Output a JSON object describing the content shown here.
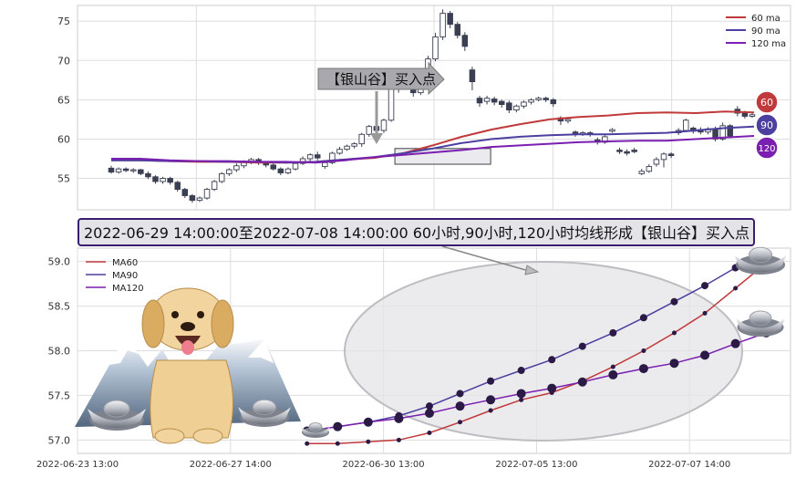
{
  "chart_data": [
    {
      "type": "candlestick",
      "ylim": [
        51,
        77
      ],
      "yticks": [
        55,
        60,
        65,
        70,
        75
      ],
      "grid": true,
      "legend_position": "top-right",
      "legend": [
        "60 ma",
        "90 ma",
        "120 ma"
      ],
      "annotation": "【银山谷】买入点",
      "end_badges": [
        "60",
        "90",
        "120"
      ],
      "colors": {
        "ma60": "#c0393b",
        "ma90": "#4b3f9f",
        "ma120": "#7a1fb0"
      },
      "candles": [
        [
          56.3,
          55.8,
          56.6,
          55.6
        ],
        [
          55.8,
          56.2,
          56.4,
          55.6
        ],
        [
          56.2,
          56.0,
          56.4,
          55.8
        ],
        [
          56.0,
          56.1,
          56.3,
          55.7
        ],
        [
          56.1,
          55.6,
          56.2,
          55.4
        ],
        [
          55.6,
          55.2,
          55.9,
          54.9
        ],
        [
          55.2,
          54.6,
          55.4,
          54.3
        ],
        [
          54.6,
          55.0,
          55.2,
          54.3
        ],
        [
          55.0,
          54.5,
          55.2,
          54.2
        ],
        [
          54.5,
          53.6,
          54.7,
          53.3
        ],
        [
          53.6,
          52.8,
          53.8,
          52.5
        ],
        [
          52.8,
          52.2,
          53.0,
          51.9
        ],
        [
          52.2,
          52.5,
          52.7,
          52.0
        ],
        [
          52.5,
          53.6,
          53.8,
          52.3
        ],
        [
          53.6,
          54.6,
          54.8,
          53.4
        ],
        [
          54.6,
          55.6,
          55.8,
          54.4
        ],
        [
          55.6,
          56.1,
          56.3,
          55.3
        ],
        [
          56.1,
          56.6,
          56.9,
          55.8
        ],
        [
          56.6,
          57.1,
          57.3,
          56.3
        ],
        [
          57.1,
          57.4,
          57.6,
          56.8
        ],
        [
          57.4,
          57.0,
          57.6,
          56.7
        ],
        [
          57.0,
          56.7,
          57.2,
          56.4
        ],
        [
          56.7,
          56.2,
          56.9,
          56.0
        ],
        [
          56.2,
          55.7,
          56.4,
          55.4
        ],
        [
          55.7,
          56.2,
          56.4,
          55.5
        ],
        [
          56.2,
          56.9,
          57.1,
          56.0
        ],
        [
          56.9,
          57.5,
          57.8,
          56.7
        ],
        [
          57.5,
          58.0,
          58.2,
          57.2
        ],
        [
          58.0,
          57.6,
          58.4,
          57.3
        ],
        [
          56.5,
          57.0,
          57.2,
          56.2
        ],
        [
          57.0,
          58.2,
          58.4,
          56.8
        ],
        [
          58.2,
          58.7,
          59.0,
          58.0
        ],
        [
          58.7,
          59.1,
          59.3,
          58.5
        ],
        [
          59.1,
          59.4,
          59.6,
          58.8
        ],
        [
          59.4,
          60.6,
          60.8,
          59.0
        ],
        [
          60.6,
          61.6,
          61.8,
          60.3
        ],
        [
          61.6,
          61.1,
          62.3,
          60.8
        ],
        [
          61.1,
          62.4,
          62.6,
          60.8
        ],
        [
          62.4,
          66.5,
          67.2,
          62.2
        ],
        [
          66.5,
          67.5,
          67.9,
          65.9
        ],
        [
          67.5,
          66.8,
          68.2,
          66.3
        ],
        [
          66.8,
          65.9,
          67.3,
          65.4
        ],
        [
          65.9,
          67.2,
          67.6,
          65.6
        ],
        [
          67.2,
          70.2,
          70.6,
          66.9
        ],
        [
          70.2,
          73.0,
          73.5,
          69.9
        ],
        [
          73.0,
          76.0,
          76.5,
          72.6
        ],
        [
          76.0,
          74.6,
          76.3,
          74.1
        ],
        [
          74.6,
          73.2,
          74.9,
          72.8
        ],
        [
          73.2,
          71.8,
          73.6,
          71.2
        ],
        [
          68.8,
          67.3,
          69.2,
          66.2
        ],
        [
          65.2,
          64.6,
          65.5,
          64.1
        ],
        [
          64.8,
          65.2,
          65.5,
          64.4
        ],
        [
          65.1,
          64.7,
          65.4,
          64.3
        ],
        [
          64.8,
          64.4,
          65.0,
          64.0
        ],
        [
          64.6,
          63.7,
          64.9,
          63.3
        ],
        [
          63.7,
          64.2,
          64.4,
          63.4
        ],
        [
          64.2,
          64.7,
          64.9,
          63.9
        ],
        [
          64.7,
          65.0,
          65.2,
          64.4
        ],
        [
          65.0,
          65.2,
          65.4,
          64.8
        ],
        [
          65.2,
          65.0,
          65.4,
          64.7
        ],
        [
          65.0,
          64.5,
          65.2,
          64.1
        ],
        [
          62.7,
          62.3,
          62.9,
          61.8
        ],
        [
          62.3,
          62.5,
          62.7,
          62.0
        ],
        [
          60.9,
          60.6,
          61.1,
          60.3
        ],
        [
          60.6,
          60.8,
          61.0,
          60.4
        ],
        [
          60.8,
          60.6,
          61.0,
          60.3
        ],
        [
          59.9,
          59.6,
          60.2,
          59.3
        ],
        [
          59.6,
          60.3,
          60.5,
          59.4
        ],
        [
          61.0,
          61.2,
          61.4,
          60.8
        ],
        [
          58.6,
          58.4,
          58.9,
          58.1
        ],
        [
          58.4,
          58.2,
          58.7,
          57.9
        ],
        [
          58.6,
          58.4,
          58.9,
          58.2
        ],
        [
          55.6,
          55.9,
          56.2,
          55.4
        ],
        [
          55.9,
          56.5,
          56.8,
          55.7
        ],
        [
          56.8,
          57.4,
          57.7,
          56.5
        ],
        [
          57.4,
          58.1,
          58.3,
          56.4
        ],
        [
          58.1,
          57.9,
          58.3,
          57.6
        ],
        [
          60.8,
          61.1,
          61.4,
          60.5
        ],
        [
          61.1,
          62.4,
          62.6,
          60.9
        ],
        [
          61.4,
          61.0,
          61.6,
          60.7
        ],
        [
          61.2,
          60.9,
          61.5,
          60.6
        ],
        [
          60.9,
          61.3,
          61.5,
          60.6
        ],
        [
          61.3,
          60.0,
          61.6,
          59.7
        ],
        [
          60.0,
          61.7,
          62.1,
          59.8
        ],
        [
          61.7,
          60.4,
          61.9,
          60.1
        ],
        [
          63.8,
          63.3,
          64.2,
          62.9
        ],
        [
          63.3,
          62.9,
          63.6,
          62.6
        ],
        [
          62.9,
          63.1,
          63.4,
          62.7
        ]
      ],
      "ma60": [
        57.3,
        57.3,
        57.2,
        57.1,
        57.1,
        57.0,
        57.0,
        57.1,
        57.4,
        57.6,
        58.2,
        59.2,
        60.3,
        61.2,
        61.9,
        62.5,
        62.8,
        63.0,
        63.3,
        63.4,
        63.3,
        63.5,
        63.4
      ],
      "ma90": [
        57.3,
        57.3,
        57.2,
        57.2,
        57.1,
        57.1,
        57.0,
        57.1,
        57.4,
        57.7,
        58.2,
        58.8,
        59.5,
        60.0,
        60.3,
        60.5,
        60.6,
        60.6,
        60.7,
        60.8,
        61.1,
        61.4,
        61.6
      ],
      "ma120": [
        57.5,
        57.5,
        57.3,
        57.2,
        57.2,
        57.1,
        57.1,
        57.0,
        57.3,
        57.7,
        58.0,
        58.3,
        58.6,
        59.0,
        59.2,
        59.4,
        59.6,
        59.7,
        59.8,
        59.8,
        60.0,
        60.2,
        60.4
      ],
      "highlight_box": {
        "i0": 38.5,
        "i1": 51.5,
        "y0": 56.8,
        "y1": 58.8
      }
    },
    {
      "type": "line",
      "title": "2022-06-29 14:00:00至2022-07-08 14:00:00 60小时,90小时,120小时均线形成【银山谷】买入点",
      "ylim": [
        56.85,
        59.15
      ],
      "yticks": [
        "57.0",
        "57.5",
        "58.0",
        "58.5",
        "59.0"
      ],
      "x_tick_labels": [
        "2022-06-23 13:00",
        "2022-06-27 14:00",
        "2022-06-30 13:00",
        "2022-07-05 13:00",
        "2022-07-07 14:00"
      ],
      "x_range": [
        0,
        23.3
      ],
      "x_tick_positions": [
        0,
        5,
        10,
        15,
        20
      ],
      "grid": true,
      "legend_position": "top-left",
      "series": [
        {
          "name": "MA60",
          "color": "#c0393b",
          "x": [
            7.5,
            8.5,
            9.5,
            10.5,
            11.5,
            12.5,
            13.5,
            14.5,
            15.5,
            16.5,
            17.5,
            18.5,
            19.5,
            20.5,
            21.5,
            22.5
          ],
          "values": [
            56.96,
            56.96,
            56.98,
            57.0,
            57.08,
            57.2,
            57.33,
            57.45,
            57.53,
            57.66,
            57.82,
            58.0,
            58.2,
            58.42,
            58.7,
            58.98
          ]
        },
        {
          "name": "MA90",
          "color": "#4b3f9f",
          "x": [
            7.5,
            8.5,
            9.5,
            10.5,
            11.5,
            12.5,
            13.5,
            14.5,
            15.5,
            16.5,
            17.5,
            18.5,
            19.5,
            20.5,
            21.5
          ],
          "values": [
            57.1,
            57.15,
            57.2,
            57.27,
            57.38,
            57.52,
            57.66,
            57.78,
            57.9,
            58.05,
            58.2,
            58.37,
            58.55,
            58.73,
            58.93
          ]
        },
        {
          "name": "MA120",
          "color": "#7a1fb0",
          "x": [
            7.5,
            8.5,
            9.5,
            10.5,
            11.5,
            12.5,
            13.5,
            14.5,
            15.5,
            16.5,
            17.5,
            18.5,
            19.5,
            20.5,
            21.5,
            22.5
          ],
          "values": [
            57.1,
            57.15,
            57.2,
            57.24,
            57.3,
            57.38,
            57.45,
            57.52,
            57.58,
            57.65,
            57.73,
            57.8,
            57.86,
            57.95,
            58.08,
            58.2
          ]
        }
      ]
    }
  ]
}
